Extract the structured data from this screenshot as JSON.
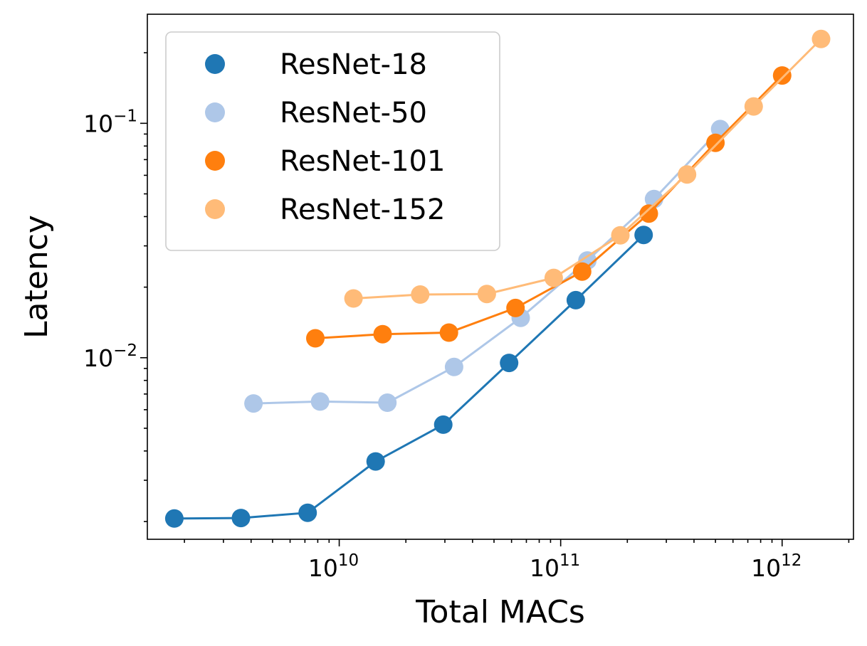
{
  "chart_data": {
    "type": "scatter",
    "xlabel": "Total MACs",
    "ylabel": "Latency",
    "xscale": "log",
    "yscale": "log",
    "xlim": [
      1360000000.0,
      2100000000000.0
    ],
    "ylim": [
      0.00168,
      0.292
    ],
    "grid": false,
    "legend": "top-left",
    "x_ticks": [
      {
        "base": "10",
        "exp": "10",
        "value": 10000000000.0
      },
      {
        "base": "10",
        "exp": "11",
        "value": 100000000000.0
      },
      {
        "base": "10",
        "exp": "12",
        "value": 1000000000000.0
      }
    ],
    "y_ticks": [
      {
        "base": "10",
        "exp": "−2",
        "value": 0.01
      },
      {
        "base": "10",
        "exp": "−1",
        "value": 0.1
      }
    ],
    "series": [
      {
        "name": "ResNet-18",
        "color": "#1f77b4",
        "x": [
          1800000000.0,
          3600000000.0,
          7200000000.0,
          14600000000.0,
          29500000000.0,
          58500000000.0,
          117000000000.0,
          237000000000.0
        ],
        "y": [
          0.00206,
          0.00207,
          0.00218,
          0.00361,
          0.00518,
          0.0095,
          0.0176,
          0.0334
        ]
      },
      {
        "name": "ResNet-50",
        "color": "#aec7e8",
        "x": [
          4100000000.0,
          8200000000.0,
          16500000000.0,
          33000000000.0,
          66000000000.0,
          132000000000.0,
          264000000000.0,
          525000000000.0
        ],
        "y": [
          0.00638,
          0.0065,
          0.00643,
          0.00913,
          0.0148,
          0.026,
          0.0475,
          0.0945
        ]
      },
      {
        "name": "ResNet-101",
        "color": "#ff7f0e",
        "x": [
          7800000000.0,
          15700000000.0,
          31300000000.0,
          62500000000.0,
          125000000000.0,
          250000000000.0,
          500000000000.0,
          1000000000000.0
        ],
        "y": [
          0.0121,
          0.0126,
          0.0128,
          0.0163,
          0.0233,
          0.0412,
          0.0826,
          0.16
        ]
      },
      {
        "name": "ResNet-152",
        "color": "#ffbb78",
        "x": [
          11600000000.0,
          23200000000.0,
          46400000000.0,
          93000000000.0,
          186000000000.0,
          372000000000.0,
          744000000000.0,
          1500000000000.0
        ],
        "y": [
          0.0179,
          0.0186,
          0.0187,
          0.0219,
          0.0333,
          0.0605,
          0.118,
          0.229
        ]
      }
    ]
  }
}
